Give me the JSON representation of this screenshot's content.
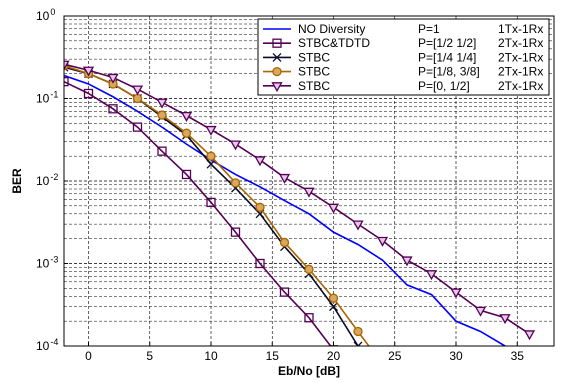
{
  "chart_data": {
    "type": "line",
    "xlabel": "Eb/No [dB]",
    "ylabel": "BER",
    "xlim": [
      -2,
      38
    ],
    "ylim": [
      0.0001,
      1
    ],
    "yscale": "log",
    "grid": true,
    "legend_position": "top-right",
    "x_ticks": [
      "0",
      "5",
      "10",
      "15",
      "20",
      "25",
      "30",
      "35"
    ],
    "y_ticks": [
      {
        "base": "10",
        "exp": "0"
      },
      {
        "base": "10",
        "exp": "-1"
      },
      {
        "base": "10",
        "exp": "-2"
      },
      {
        "base": "10",
        "exp": "-3"
      },
      {
        "base": "10",
        "exp": "-4"
      }
    ],
    "series": [
      {
        "name": "NO Diversity",
        "p": "P=1",
        "config": "1Tx-1Rx",
        "color": "#0000ff",
        "marker": "none",
        "x": [
          -2,
          0,
          2,
          4,
          6,
          8,
          10,
          12,
          14,
          16,
          18,
          20,
          22,
          24,
          26,
          28,
          30,
          32,
          34,
          36
        ],
        "y": [
          0.19,
          0.15,
          0.105,
          0.07,
          0.045,
          0.028,
          0.018,
          0.012,
          0.0085,
          0.0058,
          0.004,
          0.0024,
          0.0017,
          0.0011,
          0.00055,
          0.00042,
          0.0002,
          0.00015,
          0.0001,
          7e-05
        ]
      },
      {
        "name": "STBC&TDTD",
        "p": "P=[1/2 1/2]",
        "config": "2Tx-1Rx",
        "color": "#550055",
        "marker": "square",
        "x": [
          -2,
          0,
          2,
          4,
          6,
          8,
          10,
          12,
          14,
          16,
          18,
          20
        ],
        "y": [
          0.16,
          0.115,
          0.075,
          0.045,
          0.023,
          0.012,
          0.0055,
          0.0024,
          0.001,
          0.00045,
          0.00022,
          9e-05
        ]
      },
      {
        "name": "STBC",
        "p": "P=[1/4 1/4]",
        "config": "2Tx-1Rx",
        "color": "#0a0a2a",
        "marker": "x",
        "x": [
          -2,
          0,
          2,
          4,
          6,
          8,
          10,
          12,
          14,
          16,
          18,
          20,
          22
        ],
        "y": [
          0.24,
          0.2,
          0.15,
          0.1,
          0.06,
          0.036,
          0.016,
          0.0082,
          0.004,
          0.0016,
          0.00075,
          0.0003,
          0.0001
        ]
      },
      {
        "name": "STBC",
        "p": "P=[1/8, 3/8]",
        "config": "2Tx-1Rx",
        "color": "#aa6600",
        "marker": "circle",
        "x": [
          -2,
          0,
          2,
          4,
          6,
          8,
          10,
          12,
          14,
          16,
          18,
          20,
          22,
          24
        ],
        "y": [
          0.25,
          0.2,
          0.15,
          0.1,
          0.063,
          0.038,
          0.02,
          0.0095,
          0.0048,
          0.0018,
          0.00085,
          0.00038,
          0.00015,
          6e-05
        ]
      },
      {
        "name": "STBC",
        "p": "P=[0, 1/2]",
        "config": "2Tx-1Rx",
        "color": "#550055",
        "marker": "triangle-down",
        "x": [
          -2,
          0,
          2,
          4,
          6,
          8,
          10,
          12,
          14,
          16,
          18,
          20,
          22,
          24,
          26,
          28,
          30,
          32,
          34,
          36
        ],
        "y": [
          0.26,
          0.22,
          0.18,
          0.13,
          0.09,
          0.062,
          0.042,
          0.028,
          0.018,
          0.011,
          0.0075,
          0.0048,
          0.003,
          0.0019,
          0.0011,
          0.00075,
          0.00045,
          0.00027,
          0.00022,
          0.00014
        ]
      }
    ]
  }
}
